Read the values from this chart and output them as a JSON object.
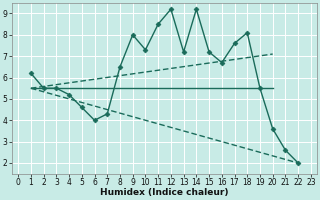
{
  "xlabel": "Humidex (Indice chaleur)",
  "xlim": [
    -0.5,
    23.5
  ],
  "ylim": [
    1.5,
    9.5
  ],
  "xticks": [
    0,
    1,
    2,
    3,
    4,
    5,
    6,
    7,
    8,
    9,
    10,
    11,
    12,
    13,
    14,
    15,
    16,
    17,
    18,
    19,
    20,
    21,
    22,
    23
  ],
  "yticks": [
    2,
    3,
    4,
    5,
    6,
    7,
    8,
    9
  ],
  "bg_color": "#c8ebe6",
  "line_color": "#1a6b5a",
  "grid_color": "#e8e8e8",
  "lines": [
    {
      "x": [
        1,
        2,
        3,
        4,
        5,
        6,
        7,
        8,
        9,
        10,
        11,
        12,
        13,
        14,
        15,
        16,
        17,
        18,
        19,
        20,
        21,
        22
      ],
      "y": [
        6.2,
        5.5,
        5.5,
        5.2,
        4.6,
        4.0,
        4.3,
        6.5,
        8.0,
        7.3,
        8.5,
        9.2,
        7.2,
        9.2,
        7.2,
        6.7,
        7.6,
        8.1,
        5.5,
        3.6,
        2.6,
        2.0
      ],
      "marker": "D",
      "markersize": 2.5,
      "linewidth": 1.0,
      "solid": true
    },
    {
      "x": [
        1,
        20
      ],
      "y": [
        5.5,
        5.5
      ],
      "marker": null,
      "markersize": 0,
      "linewidth": 1.0,
      "solid": true
    },
    {
      "x": [
        1,
        20
      ],
      "y": [
        5.5,
        7.1
      ],
      "marker": null,
      "markersize": 0,
      "linewidth": 1.0,
      "solid": false
    },
    {
      "x": [
        1,
        22
      ],
      "y": [
        5.5,
        2.0
      ],
      "marker": null,
      "markersize": 0,
      "linewidth": 1.0,
      "solid": false
    }
  ]
}
